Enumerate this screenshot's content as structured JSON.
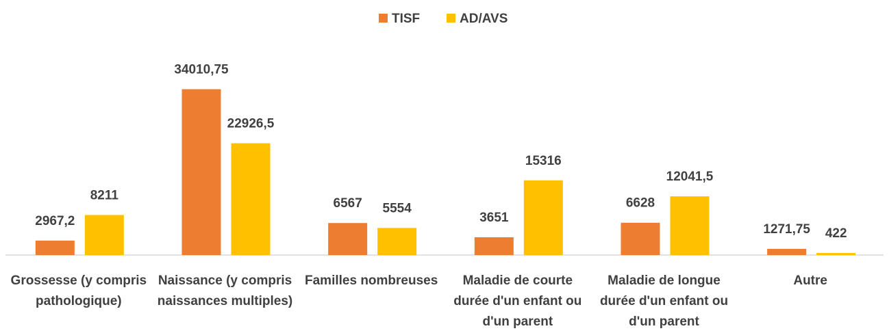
{
  "chart_data": {
    "type": "bar",
    "categories": [
      "Grossesse (y compris pathologique)",
      "Naissance (y compris naissances multiples)",
      "Familles nombreuses",
      "Maladie de courte durée d'un enfant ou d'un parent",
      "Maladie de longue durée d'un enfant ou d'un parent",
      "Autre"
    ],
    "series": [
      {
        "name": "TISF",
        "color": "#ed7d31",
        "values": [
          2967.2,
          34010.75,
          6567,
          3651,
          6628,
          1271.75
        ],
        "value_labels": [
          "2967,2",
          "34010,75",
          "6567",
          "3651",
          "6628",
          "1271,75"
        ]
      },
      {
        "name": "AD/AVS",
        "color": "#ffc000",
        "values": [
          8211,
          22926.5,
          5554,
          15316,
          12041.5,
          422
        ],
        "value_labels": [
          "8211",
          "22926,5",
          "5554",
          "15316",
          "12041,5",
          "422"
        ]
      }
    ],
    "ylim": [
      0,
      38000
    ],
    "legend": "top"
  }
}
